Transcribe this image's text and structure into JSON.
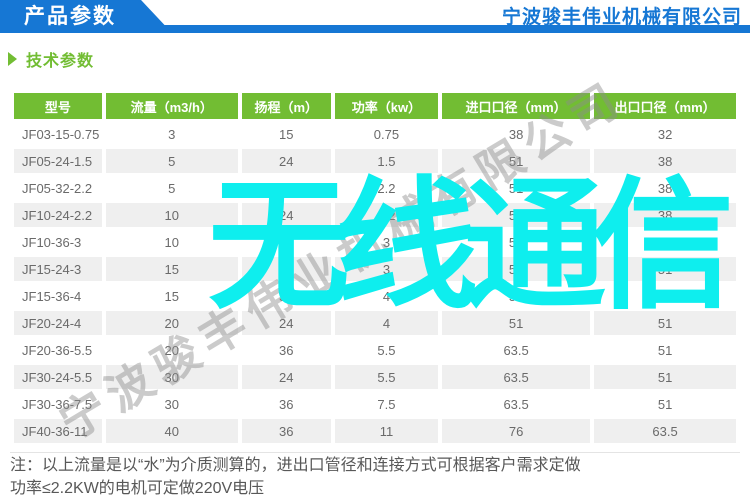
{
  "header": {
    "banner_title": "产品参数",
    "company_name": "宁波骏丰伟业机械有限公司"
  },
  "section": {
    "title": "技术参数"
  },
  "table": {
    "columns": [
      "型号",
      "流量（m3/h）",
      "扬程（m）",
      "功率（kw）",
      "进口口径（mm）",
      "出口口径（mm）"
    ],
    "rows": [
      [
        "JF03-15-0.75",
        "3",
        "15",
        "0.75",
        "38",
        "32"
      ],
      [
        "JF05-24-1.5",
        "5",
        "24",
        "1.5",
        "51",
        "38"
      ],
      [
        "JF05-32-2.2",
        "5",
        "32",
        "2.2",
        "51",
        "38"
      ],
      [
        "JF10-24-2.2",
        "10",
        "24",
        "2.2",
        "51",
        "38"
      ],
      [
        "JF10-36-3",
        "10",
        "36",
        "3",
        "51",
        "38"
      ],
      [
        "JF15-24-3",
        "15",
        "24",
        "3",
        "51",
        "51"
      ],
      [
        "JF15-36-4",
        "15",
        "36",
        "4",
        "51",
        "51"
      ],
      [
        "JF20-24-4",
        "20",
        "24",
        "4",
        "51",
        "51"
      ],
      [
        "JF20-36-5.5",
        "20",
        "36",
        "5.5",
        "63.5",
        "51"
      ],
      [
        "JF30-24-5.5",
        "30",
        "24",
        "5.5",
        "63.5",
        "51"
      ],
      [
        "JF30-36-7.5",
        "30",
        "36",
        "7.5",
        "63.5",
        "51"
      ],
      [
        "JF40-36-11",
        "40",
        "36",
        "11",
        "76",
        "63.5"
      ]
    ]
  },
  "notes": {
    "line1": "注：以上流量是以“水”为介质测算的，进出口管径和连接方式可根据客户需求定做",
    "line2": "功率≤2.2KW的电机可定做220V电压"
  },
  "watermarks": {
    "center_text": "无线通信",
    "center_color": "#0eeeee",
    "diagonal_text": "宁波骏丰伟业机械有限公司"
  },
  "colors": {
    "accent_blue": "#1677d4",
    "accent_green": "#72bd33",
    "alt_row_gray": "#efefef"
  }
}
